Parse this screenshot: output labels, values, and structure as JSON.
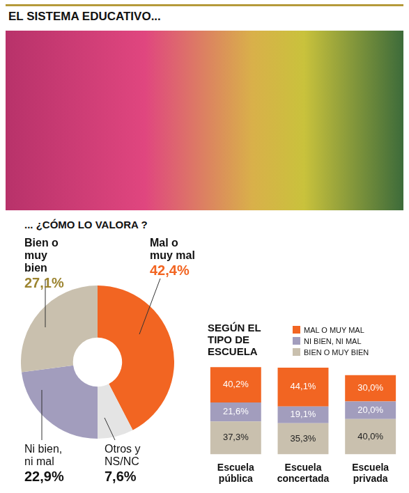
{
  "title": "EL SISTEMA EDUCATIVO...",
  "chart_data": [
    {
      "type": "doughnut",
      "title": "... ¿CÓMO LO VALORA ?",
      "categories": [
        "Mal o muy mal",
        "Otros y NS/NC",
        "Ni bien, ni mal",
        "Bien o muy bien"
      ],
      "values": [
        42.4,
        7.6,
        22.9,
        27.1
      ],
      "value_labels": [
        "42,4%",
        "7,6%",
        "22,9%",
        "27,1%"
      ],
      "colors": [
        "#f26522",
        "#e4e4e4",
        "#a29dbd",
        "#c9c0ae"
      ]
    },
    {
      "type": "bar",
      "title": "SEGÚN EL TIPO DE ESCUELA",
      "categories": [
        "Escuela pública",
        "Escuela concertada",
        "Escuela privada"
      ],
      "stacked": true,
      "data_labels": true,
      "tick_labels": "x",
      "legend": "top right",
      "ylim": [
        0,
        100
      ],
      "series": [
        {
          "name": "BIEN O MUY BIEN",
          "color": "#c9c0ae",
          "values": [
            37.3,
            35.3,
            40.0
          ],
          "value_labels": [
            "37,3%",
            "35,3%",
            "40,0%"
          ]
        },
        {
          "name": "NI BIEN, NI MAL",
          "color": "#a29dbd",
          "values": [
            21.6,
            19.1,
            20.0
          ],
          "value_labels": [
            "21,6%",
            "19,1%",
            "20,0%"
          ]
        },
        {
          "name": "MAL O MUY MAL",
          "color": "#f26522",
          "values": [
            40.2,
            44.1,
            30.0
          ],
          "value_labels": [
            "40,2%",
            "44,1%",
            "30,0%"
          ]
        }
      ]
    }
  ]
}
